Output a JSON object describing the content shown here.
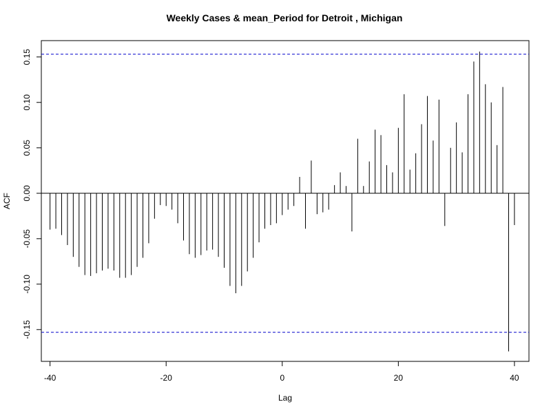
{
  "chart_data": {
    "type": "bar",
    "title": "Weekly Cases & mean_Period for Detroit , Michigan",
    "xlabel": "Lag",
    "ylabel": "ACF",
    "xlim": [
      -41.5,
      42.5
    ],
    "ylim": [
      -0.185,
      0.168
    ],
    "xticks": [
      {
        "value": -40,
        "label": "-40"
      },
      {
        "value": -20,
        "label": "-20"
      },
      {
        "value": 0,
        "label": "0"
      },
      {
        "value": 20,
        "label": "20"
      },
      {
        "value": 40,
        "label": "40"
      }
    ],
    "yticks": [
      {
        "value": -0.15,
        "label": "-0.15"
      },
      {
        "value": -0.1,
        "label": "-0.10"
      },
      {
        "value": -0.05,
        "label": "-0.05"
      },
      {
        "value": 0.0,
        "label": "0.00"
      },
      {
        "value": 0.05,
        "label": "0.05"
      },
      {
        "value": 0.1,
        "label": "0.10"
      },
      {
        "value": 0.15,
        "label": "0.15"
      }
    ],
    "confidence_bounds": [
      0.153,
      -0.153
    ],
    "colors": {
      "bars": "#000000",
      "zero_line": "#000000",
      "bounds": "#0000cc"
    },
    "x": [
      -40,
      -39,
      -38,
      -37,
      -36,
      -35,
      -34,
      -33,
      -32,
      -31,
      -30,
      -29,
      -28,
      -27,
      -26,
      -25,
      -24,
      -23,
      -22,
      -21,
      -20,
      -19,
      -18,
      -17,
      -16,
      -15,
      -14,
      -13,
      -12,
      -11,
      -10,
      -9,
      -8,
      -7,
      -6,
      -5,
      -4,
      -3,
      -2,
      -1,
      0,
      1,
      2,
      3,
      4,
      5,
      6,
      7,
      8,
      9,
      10,
      11,
      12,
      13,
      14,
      15,
      16,
      17,
      18,
      19,
      20,
      21,
      22,
      23,
      24,
      25,
      26,
      27,
      28,
      29,
      30,
      31,
      32,
      33,
      34,
      35,
      36,
      37,
      38,
      39,
      40
    ],
    "values": [
      -0.04,
      -0.039,
      -0.046,
      -0.057,
      -0.07,
      -0.081,
      -0.09,
      -0.091,
      -0.088,
      -0.085,
      -0.083,
      -0.085,
      -0.093,
      -0.093,
      -0.09,
      -0.081,
      -0.071,
      -0.055,
      -0.028,
      -0.013,
      -0.014,
      -0.018,
      -0.033,
      -0.052,
      -0.067,
      -0.071,
      -0.068,
      -0.063,
      -0.062,
      -0.07,
      -0.082,
      -0.102,
      -0.11,
      -0.102,
      -0.086,
      -0.071,
      -0.054,
      -0.039,
      -0.035,
      -0.033,
      -0.024,
      -0.018,
      -0.014,
      0.018,
      -0.039,
      0.036,
      -0.023,
      -0.021,
      -0.018,
      0.009,
      0.023,
      0.008,
      -0.042,
      0.06,
      0.008,
      0.035,
      0.07,
      0.064,
      0.031,
      0.023,
      0.072,
      0.109,
      0.026,
      0.044,
      0.076,
      0.107,
      0.058,
      0.103,
      -0.036,
      0.05,
      0.078,
      0.045,
      0.109,
      0.145,
      0.156,
      0.12,
      0.1,
      0.053,
      0.117,
      -0.174,
      -0.035
    ]
  }
}
